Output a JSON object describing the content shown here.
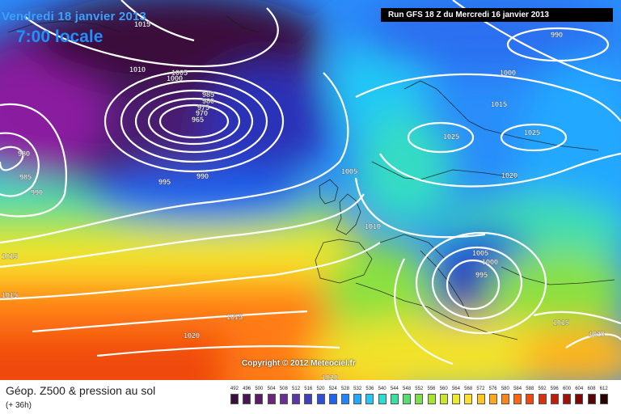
{
  "header": {
    "date": "Vendredi 18 janvier 2013",
    "time": "7:00 locale",
    "run": "Run GFS 18 Z du Mercredi 16 janvier 2013"
  },
  "footer": {
    "title": "Géop. Z500 & pression au sol",
    "subtitle": "(+ 36h)",
    "copyright": "Copyright © 2012 Meteociel.fr"
  },
  "isobar_labels": [
    "1015",
    "1010",
    "1005",
    "1000",
    "985",
    "980",
    "975",
    "970",
    "965",
    "995",
    "990",
    "980",
    "985",
    "990",
    "1015",
    "1015",
    "1020",
    "1015",
    "1005",
    "1010",
    "990",
    "1000",
    "1015",
    "1025",
    "1025",
    "1020",
    "1005",
    "1000",
    "995",
    "1015",
    "1020",
    "1020"
  ],
  "scale": {
    "labels": [
      "492",
      "496",
      "500",
      "504",
      "508",
      "512",
      "516",
      "520",
      "524",
      "528",
      "532",
      "536",
      "540",
      "544",
      "548",
      "552",
      "556",
      "560",
      "564",
      "568",
      "572",
      "576",
      "580",
      "584",
      "588",
      "592",
      "596",
      "600",
      "604",
      "608",
      "612"
    ],
    "colors": [
      "#3a0f3a",
      "#4a1650",
      "#5a1d66",
      "#6a247a",
      "#6a2f94",
      "#5a36a8",
      "#3f3fbf",
      "#2f4fd8",
      "#1f64ef",
      "#1f86ff",
      "#24a8ff",
      "#24c8f8",
      "#2bdcd0",
      "#38e0a0",
      "#54e070",
      "#7be04c",
      "#a6e434",
      "#cce62c",
      "#ecea2c",
      "#fde02a",
      "#ffc622",
      "#ffa61c",
      "#ff8616",
      "#ff6612",
      "#f2480e",
      "#dc300c",
      "#c21c0a",
      "#a21008",
      "#7e0606",
      "#560404",
      "#260202"
    ],
    "color_meaning": "500 hPa geopotential height in decametres"
  }
}
